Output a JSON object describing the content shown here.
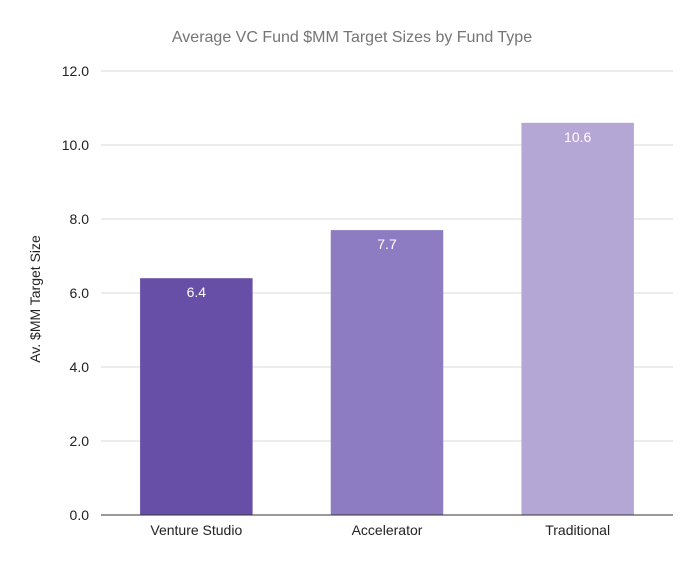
{
  "chart_data": {
    "type": "bar",
    "title": "Average VC Fund $MM Target Sizes by Fund Type",
    "xlabel": "",
    "ylabel": "Av. $MM Target Size",
    "categories": [
      "Venture Studio",
      "Accelerator",
      "Traditional"
    ],
    "values": [
      6.4,
      7.7,
      10.6
    ],
    "data_labels": [
      "6.4",
      "7.7",
      "10.6"
    ],
    "colors": [
      "#674ea7",
      "#8e7cc3",
      "#b4a7d6"
    ],
    "ylim": [
      0,
      12
    ],
    "yticks": [
      "0.0",
      "2.0",
      "4.0",
      "6.0",
      "8.0",
      "10.0",
      "12.0"
    ],
    "grid": true,
    "legend": "none"
  }
}
